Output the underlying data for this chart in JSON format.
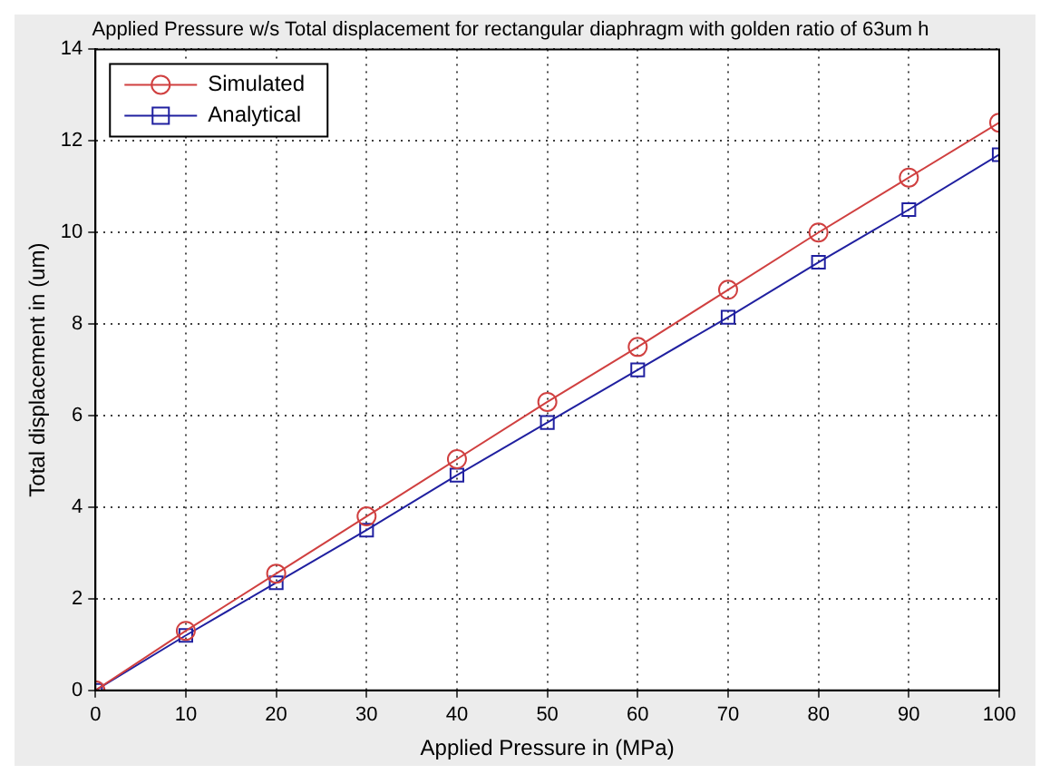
{
  "chart_data": {
    "type": "line",
    "title": "Applied Pressure w/s Total displacement for rectangular diaphragm with golden ratio of 63um h",
    "xlabel": "Applied Pressure in (MPa)",
    "ylabel": "Total displacement in (um)",
    "x": [
      0,
      10,
      20,
      30,
      40,
      50,
      60,
      70,
      80,
      90,
      100
    ],
    "series": [
      {
        "name": "Simulated",
        "color": "#d04040",
        "marker": "circle",
        "values": [
          0,
          1.3,
          2.55,
          3.8,
          5.05,
          6.3,
          7.5,
          8.75,
          10,
          11.2,
          12.4
        ]
      },
      {
        "name": "Analytical",
        "color": "#2020a0",
        "marker": "square",
        "values": [
          0,
          1.2,
          2.35,
          3.5,
          4.7,
          5.85,
          7.0,
          8.15,
          9.35,
          10.5,
          11.7
        ]
      }
    ],
    "xlim": [
      0,
      100
    ],
    "xticks": [
      0,
      10,
      20,
      30,
      40,
      50,
      60,
      70,
      80,
      90,
      100
    ],
    "ylim": [
      0,
      14
    ],
    "yticks": [
      0,
      2,
      4,
      6,
      8,
      10,
      12,
      14
    ],
    "grid": true,
    "legend": "top left",
    "line_style": "solid"
  }
}
